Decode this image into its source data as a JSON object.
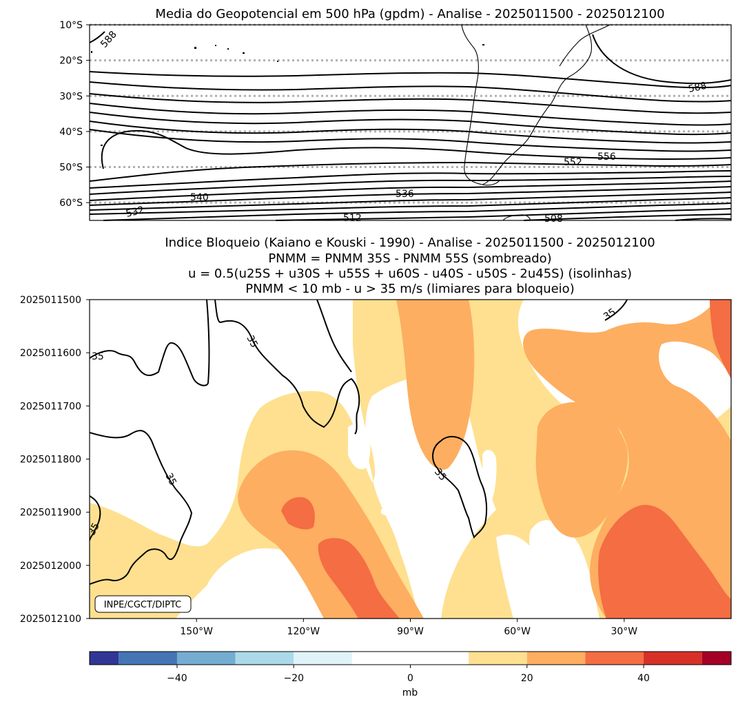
{
  "chart_data": [
    {
      "type": "contour-map",
      "title": "Media do Geopotencial em 500 hPa (gpdm) - Analise - 2025011500 - 2025012100",
      "ytick_labels": [
        "10°S",
        "20°S",
        "30°S",
        "40°S",
        "50°S",
        "60°S"
      ],
      "ylim": [
        -10,
        -65
      ],
      "xlim": [
        -180,
        0
      ],
      "grid": "dashed latitude lines",
      "contour_labels": [
        {
          "text": "588",
          "lon": -176,
          "lat": -15
        },
        {
          "text": "588",
          "lon": -8,
          "lat": -27
        },
        {
          "text": "556",
          "lon": -33,
          "lat": -48
        },
        {
          "text": "552",
          "lon": -43,
          "lat": -49
        },
        {
          "text": "540",
          "lon": -148,
          "lat": -59
        },
        {
          "text": "536",
          "lon": -89,
          "lat": -58
        },
        {
          "text": "532",
          "lon": -166,
          "lat": -63
        },
        {
          "text": "512",
          "lon": -103,
          "lat": -65
        },
        {
          "text": "508",
          "lon": -48,
          "lat": -65
        }
      ]
    },
    {
      "type": "filled-contour",
      "title_lines": [
        "Indice Bloqueio (Kaiano e Kouski - 1990) - Analise - 2025011500 - 2025012100",
        "PNMM = PNMM 35S - PNMM 55S (sombreado)",
        "u = 0.5(u25S + u30S + u55S + u60S - u40S - u50S - 2u45S) (isolinhas)",
        "PNMM < 10 mb - u > 35 m/s (limiares para bloqueio)"
      ],
      "xtick_labels": [
        "150°W",
        "120°W",
        "90°W",
        "60°W",
        "30°W"
      ],
      "xticks": [
        -150,
        -120,
        -90,
        -60,
        -30
      ],
      "ytick_labels": [
        "2025011500",
        "2025011600",
        "2025011700",
        "2025011800",
        "2025011900",
        "2025012000",
        "2025012100"
      ],
      "xlim": [
        -180,
        0
      ],
      "ylim_days": [
        0,
        6
      ],
      "contour_level": 35,
      "contour_label_text": "35",
      "credit": "INPE/CGCT/DIPTC",
      "colorbar": {
        "label": "mb",
        "tick_labels": [
          "−40",
          "−20",
          "0",
          "20",
          "40"
        ],
        "ticks": [
          -40,
          -20,
          0,
          20,
          40
        ],
        "range": [
          -55,
          55
        ],
        "levels": [
          -55,
          -50,
          -40,
          -30,
          -20,
          -10,
          10,
          20,
          30,
          40,
          50,
          55
        ],
        "colors": [
          "#313695",
          "#4575b4",
          "#74add1",
          "#abd9e9",
          "#e0f3f8",
          "#ffffff",
          "#fee090",
          "#fdae61",
          "#f46d43",
          "#d73027",
          "#a50026"
        ]
      }
    }
  ]
}
